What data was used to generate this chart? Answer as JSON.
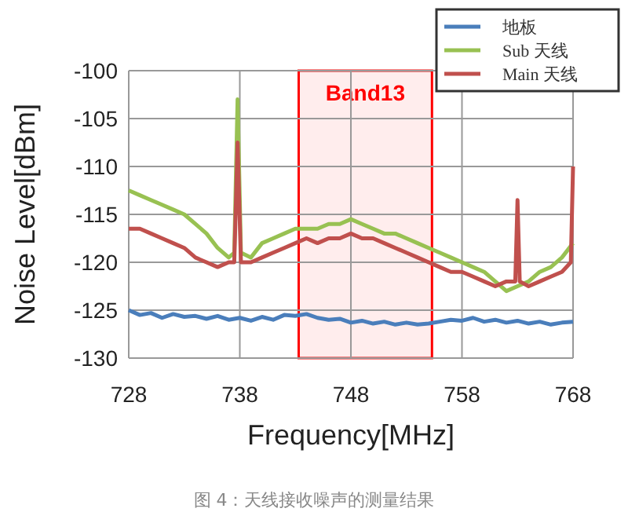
{
  "chart_data": {
    "type": "line",
    "xlabel": "Frequency[MHz]",
    "ylabel": "Noise Level[dBm]",
    "xlim": [
      728,
      768
    ],
    "ylim": [
      -130,
      -100
    ],
    "xticks": [
      728,
      738,
      748,
      758,
      768
    ],
    "yticks": [
      -130,
      -125,
      -120,
      -115,
      -110,
      -105,
      -100
    ],
    "grid": true,
    "legend": "top right",
    "bands": [
      {
        "axis": "x",
        "from": 743.3,
        "to": 755.3,
        "label": "Band13",
        "color": "#ff0000"
      }
    ],
    "annotations": [
      "图 4：天线接收噪声的测量结果"
    ],
    "series": [
      {
        "name": "地板",
        "color": "#4a7ebb",
        "x": [
          728,
          729,
          730,
          731,
          732,
          733,
          734,
          735,
          736,
          737,
          738,
          739,
          740,
          741,
          742,
          743,
          744,
          745,
          746,
          747,
          748,
          749,
          750,
          751,
          752,
          753,
          754,
          755,
          756,
          757,
          758,
          759,
          760,
          761,
          762,
          763,
          764,
          765,
          766,
          767,
          768
        ],
        "values": [
          -125,
          -125.5,
          -125.3,
          -125.8,
          -125.4,
          -125.7,
          -125.6,
          -125.9,
          -125.6,
          -126,
          -125.8,
          -126.1,
          -125.7,
          -126,
          -125.5,
          -125.6,
          -125.4,
          -125.8,
          -126,
          -125.9,
          -126.3,
          -126.1,
          -126.4,
          -126.2,
          -126.5,
          -126.3,
          -126.5,
          -126.4,
          -126.2,
          -126,
          -126.1,
          -125.8,
          -126.2,
          -126,
          -126.3,
          -126.1,
          -126.4,
          -126.2,
          -126.5,
          -126.3,
          -126.2
        ]
      },
      {
        "name": "Sub 天线",
        "color": "#98c152",
        "x": [
          728,
          729,
          730,
          731,
          732,
          733,
          734,
          735,
          736,
          737,
          737.5,
          737.8,
          738.1,
          739,
          740,
          741,
          742,
          743,
          744,
          745,
          746,
          747,
          748,
          749,
          750,
          751,
          752,
          753,
          754,
          755,
          756,
          757,
          758,
          759,
          760,
          761,
          762,
          763,
          764,
          765,
          766,
          767,
          768
        ],
        "values": [
          -112.5,
          -113,
          -113.5,
          -114,
          -114.5,
          -115,
          -116,
          -117,
          -118.5,
          -119.5,
          -119,
          -103,
          -119,
          -119.5,
          -118,
          -117.5,
          -117,
          -116.5,
          -116.5,
          -116.5,
          -116,
          -116,
          -115.5,
          -116,
          -116.5,
          -117,
          -117,
          -117.5,
          -118,
          -118.5,
          -119,
          -119.5,
          -120,
          -120.5,
          -121,
          -122,
          -123,
          -122.5,
          -122,
          -121,
          -120.5,
          -119.5,
          -118
        ]
      },
      {
        "name": "Main 天线",
        "color": "#c0504d",
        "x": [
          728,
          729,
          730,
          731,
          732,
          733,
          734,
          735,
          736,
          737,
          737.5,
          737.8,
          738.1,
          739,
          740,
          741,
          742,
          743,
          744,
          745,
          746,
          747,
          748,
          749,
          750,
          751,
          752,
          753,
          754,
          755,
          756,
          757,
          758,
          759,
          760,
          761,
          762,
          762.8,
          763,
          763.2,
          764,
          765,
          766,
          767,
          767.8,
          768
        ],
        "values": [
          -116.5,
          -116.5,
          -117,
          -117.5,
          -118,
          -118.5,
          -119.5,
          -120,
          -120.5,
          -120,
          -120,
          -107.5,
          -120,
          -120,
          -119.5,
          -119,
          -118.5,
          -118,
          -117.5,
          -118,
          -117.5,
          -117.5,
          -117,
          -117.5,
          -117.5,
          -118,
          -118.5,
          -119,
          -119.5,
          -120,
          -120.5,
          -121,
          -121,
          -121.5,
          -122,
          -122.5,
          -122,
          -122,
          -113.5,
          -122,
          -122.5,
          -122,
          -121.5,
          -121,
          -120,
          -110
        ]
      }
    ]
  }
}
